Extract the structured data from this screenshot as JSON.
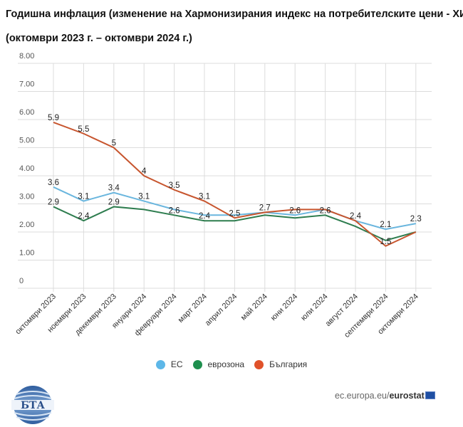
{
  "title_line1": "Годишна инфлация (изменение на Хармонизирания индекс на потребителските цени - ХИПЦ)",
  "title_line2": "(октомври 2023 г. – октомври 2024 г.)",
  "chart_data": {
    "type": "line",
    "categories": [
      "октомври 2023",
      "ноември 2023",
      "декември 2023",
      "януари 2024",
      "февруари 2024",
      "март 2024",
      "април 2024",
      "май 2024",
      "юни 2024",
      "юли 2024",
      "август 2024",
      "септември 2024",
      "октомври 2024"
    ],
    "yticks": [
      "0",
      "1.00",
      "2.00",
      "3.00",
      "4.00",
      "5.00",
      "6.00",
      "7.00",
      "8.00"
    ],
    "ylim": [
      0,
      8
    ],
    "grid": true,
    "legend_position": "bottom",
    "series": [
      {
        "name": "ЕС",
        "color": "#6ab6de",
        "values": [
          3.6,
          3.1,
          3.4,
          3.1,
          2.8,
          2.6,
          2.6,
          2.7,
          2.6,
          2.8,
          2.4,
          2.1,
          2.3
        ],
        "labels": [
          "3.6",
          "3.1",
          "3.4",
          "3.1",
          null,
          null,
          null,
          "2.7",
          "2.6",
          null,
          null,
          "2.1",
          "2.3"
        ]
      },
      {
        "name": "еврозона",
        "color": "#2e7d4f",
        "values": [
          2.9,
          2.4,
          2.9,
          2.8,
          2.6,
          2.4,
          2.4,
          2.6,
          2.5,
          2.6,
          2.2,
          1.7,
          2.0
        ],
        "labels": [
          "2.9",
          "2.4",
          "2.9",
          null,
          "2.6",
          "2.4",
          null,
          null,
          null,
          "2.6",
          null,
          null,
          null
        ]
      },
      {
        "name": "България",
        "color": "#c7552e",
        "values": [
          5.9,
          5.5,
          5.0,
          4.0,
          3.5,
          3.1,
          2.5,
          2.7,
          2.8,
          2.8,
          2.4,
          1.5,
          2.0
        ],
        "labels": [
          "5.9",
          "5.5",
          "5",
          "4",
          "3.5",
          "3.1",
          "2.5",
          null,
          null,
          null,
          "2.4",
          "1.5",
          null
        ]
      }
    ],
    "legend_colors": [
      "#5db7e8",
      "#1e8f4e",
      "#e0522a"
    ]
  },
  "logo_text": "БТА",
  "source": {
    "prefix": "ec.europa.eu/",
    "bold": "eurostat"
  }
}
